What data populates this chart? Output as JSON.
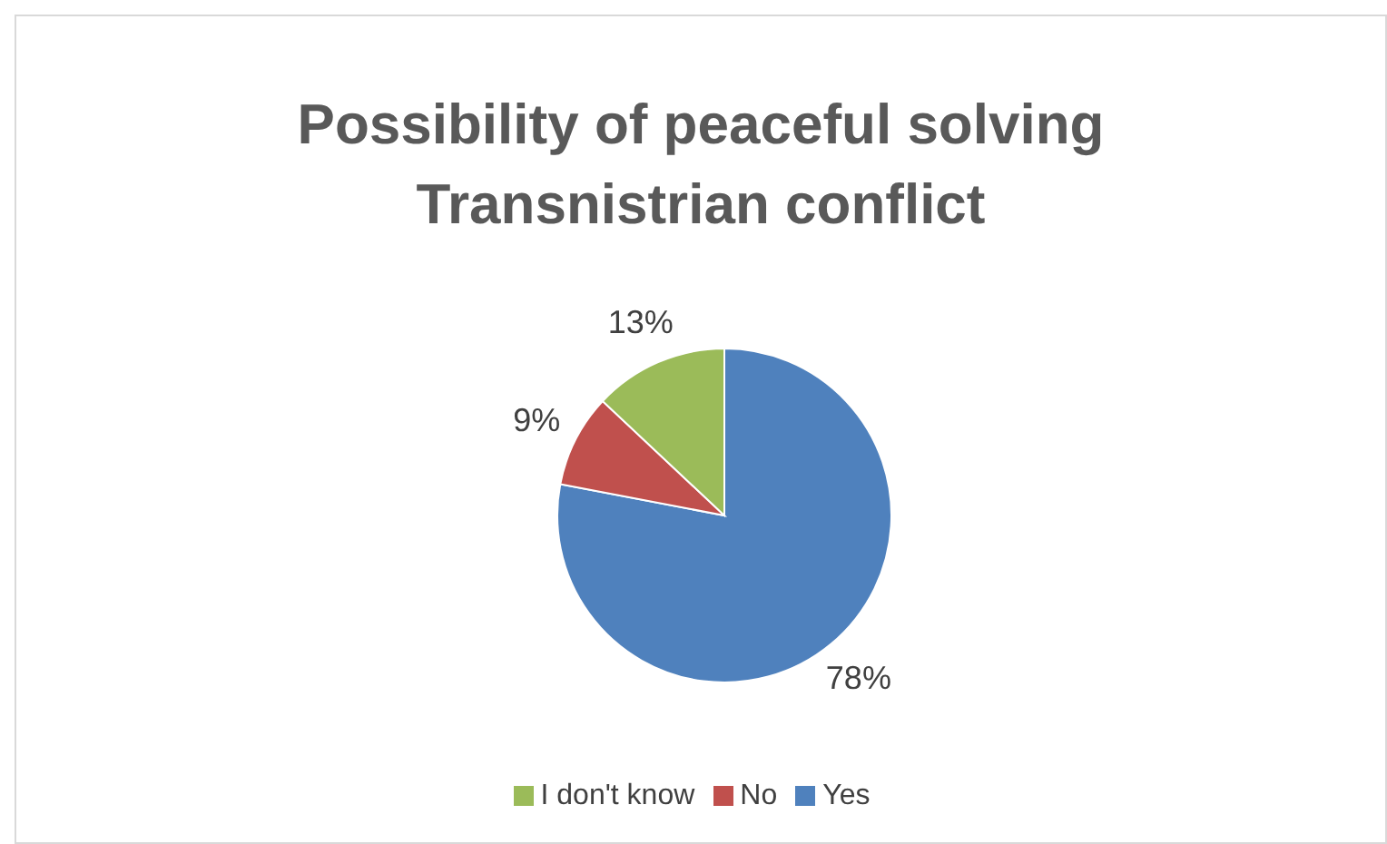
{
  "chart_data": {
    "type": "pie",
    "title": "Possibility of peaceful solving Transnistrian conflict",
    "categories": [
      "Yes",
      "No",
      "I don't know"
    ],
    "values": [
      78,
      9,
      13
    ],
    "colors": [
      "#4f81bd",
      "#c0504d",
      "#9bbb59"
    ],
    "value_labels": [
      "78%",
      "9%",
      "13%"
    ],
    "legend": "bottom"
  }
}
